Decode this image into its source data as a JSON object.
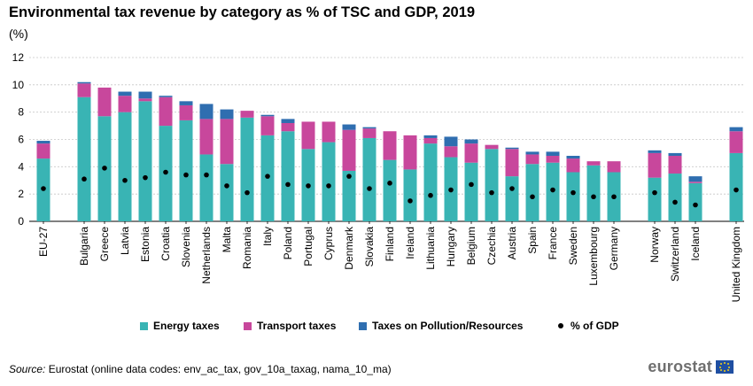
{
  "header": {
    "title": "Environmental tax revenue by category as % of TSC and GDP, 2019",
    "unit": "(%)"
  },
  "legend": {
    "energy": "Energy taxes",
    "transport": "Transport taxes",
    "pollution": "Taxes on Pollution/Resources",
    "gdp": "% of GDP"
  },
  "footer": {
    "source_label": "Source:",
    "source_text": " Eurostat (online data codes: env_ac_tax, gov_10a_taxag, nama_10_ma)",
    "logo_text": "eurostat"
  },
  "colors": {
    "energy": "#39b4b4",
    "transport": "#c8479c",
    "pollution": "#2f6eb0",
    "gdp": "#000000"
  },
  "chart_data": {
    "type": "bar",
    "stacked": true,
    "title": "Environmental tax revenue by category as % of TSC and GDP, 2019",
    "ylabel": "(%)",
    "ylim": [
      0,
      12
    ],
    "yticks": [
      0,
      2,
      4,
      6,
      8,
      10,
      12
    ],
    "grid": true,
    "legend_position": "bottom",
    "categories": [
      "EU-27",
      "Bulgaria",
      "Greece",
      "Latvia",
      "Estonia",
      "Croatia",
      "Slovenia",
      "Netherlands",
      "Malta",
      "Romania",
      "Italy",
      "Poland",
      "Portugal",
      "Cyprus",
      "Denmark",
      "Slovakia",
      "Finland",
      "Ireland",
      "Lithuania",
      "Hungary",
      "Belgium",
      "Czechia",
      "Austria",
      "Spain",
      "France",
      "Sweden",
      "Luxembourg",
      "Germany",
      "Norway",
      "Switzerland",
      "Iceland",
      "United Kingdom"
    ],
    "series": [
      {
        "name": "Energy taxes",
        "values": [
          4.6,
          9.1,
          7.7,
          8.0,
          8.8,
          7.0,
          7.4,
          4.9,
          4.2,
          7.6,
          6.3,
          6.6,
          5.3,
          5.8,
          3.7,
          6.1,
          4.5,
          3.8,
          5.7,
          4.7,
          4.3,
          5.3,
          3.3,
          4.2,
          4.3,
          3.6,
          4.1,
          3.6,
          3.2,
          3.5,
          2.8,
          5.0
        ]
      },
      {
        "name": "Transport taxes",
        "values": [
          1.1,
          1.0,
          2.1,
          1.2,
          0.2,
          2.1,
          1.1,
          2.6,
          3.3,
          0.5,
          1.4,
          0.6,
          2.0,
          1.5,
          3.0,
          0.7,
          2.1,
          2.5,
          0.4,
          0.8,
          1.4,
          0.3,
          2.0,
          0.7,
          0.5,
          1.0,
          0.3,
          0.8,
          1.8,
          1.3,
          0.1,
          1.6
        ]
      },
      {
        "name": "Taxes on Pollution/Resources",
        "values": [
          0.2,
          0.1,
          0.0,
          0.3,
          0.5,
          0.1,
          0.3,
          1.1,
          0.7,
          0.0,
          0.1,
          0.3,
          0.0,
          0.0,
          0.4,
          0.1,
          0.0,
          0.0,
          0.2,
          0.7,
          0.3,
          0.0,
          0.1,
          0.2,
          0.3,
          0.2,
          0.0,
          0.0,
          0.2,
          0.2,
          0.4,
          0.3
        ]
      }
    ],
    "gdp_share": {
      "name": "% of GDP",
      "values": [
        2.4,
        3.1,
        3.9,
        3.0,
        3.2,
        3.6,
        3.4,
        3.4,
        2.6,
        2.1,
        3.3,
        2.7,
        2.6,
        2.6,
        3.3,
        2.4,
        2.8,
        1.5,
        1.9,
        2.3,
        2.7,
        2.1,
        2.4,
        1.8,
        2.3,
        2.1,
        1.8,
        1.8,
        2.1,
        1.4,
        1.2,
        2.3
      ]
    },
    "groups": [
      [
        0
      ],
      [
        1,
        27
      ],
      [
        28,
        30
      ],
      [
        31
      ]
    ]
  }
}
